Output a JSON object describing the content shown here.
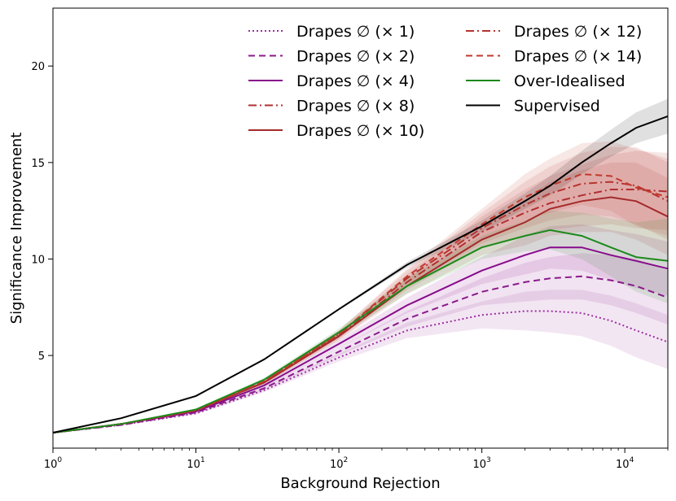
{
  "chart_data": {
    "type": "line",
    "xscale": "log",
    "xlabel": "Background Rejection",
    "ylabel": "Significance Improvement",
    "xlim": [
      1,
      20000
    ],
    "ylim": [
      0.2,
      23
    ],
    "xticks": [
      {
        "value": 1,
        "base": "10",
        "exp": "0"
      },
      {
        "value": 10,
        "base": "10",
        "exp": "1"
      },
      {
        "value": 100,
        "base": "10",
        "exp": "2"
      },
      {
        "value": 1000,
        "base": "10",
        "exp": "3"
      },
      {
        "value": 10000,
        "base": "10",
        "exp": "4"
      }
    ],
    "yticks": [
      5,
      10,
      15,
      20
    ],
    "legend_position": "top-right",
    "series": [
      {
        "name": "Drapes ∅ (× 1)",
        "color": "#9b2fa0",
        "dash": "2,3",
        "width": 2,
        "x": [
          1,
          3,
          10,
          30,
          100,
          300,
          1000,
          2000,
          3000,
          5000,
          8000,
          12000,
          20000
        ],
        "y": [
          1.0,
          1.4,
          2.0,
          3.2,
          4.9,
          6.3,
          7.1,
          7.3,
          7.3,
          7.2,
          6.8,
          6.3,
          5.7
        ],
        "band": [
          0.0,
          0.0,
          0.05,
          0.1,
          0.2,
          0.4,
          0.7,
          1.0,
          1.1,
          1.2,
          1.3,
          1.4,
          1.4
        ]
      },
      {
        "name": "Drapes ∅ (× 2)",
        "color": "#8b1a8b",
        "dash": "8,5",
        "width": 2,
        "x": [
          1,
          3,
          10,
          30,
          100,
          300,
          1000,
          2000,
          3000,
          5000,
          8000,
          12000,
          20000
        ],
        "y": [
          1.0,
          1.4,
          2.05,
          3.3,
          5.2,
          6.9,
          8.3,
          8.8,
          9.0,
          9.1,
          8.9,
          8.6,
          8.0
        ],
        "band": [
          0.0,
          0.0,
          0.05,
          0.1,
          0.2,
          0.4,
          0.7,
          1.0,
          1.1,
          1.2,
          1.3,
          1.4,
          1.4
        ]
      },
      {
        "name": "Drapes ∅ (× 4)",
        "color": "#880c8c",
        "dash": "",
        "width": 2,
        "x": [
          1,
          3,
          10,
          30,
          100,
          300,
          1000,
          2000,
          3000,
          5000,
          8000,
          12000,
          20000
        ],
        "y": [
          1.0,
          1.45,
          2.1,
          3.45,
          5.6,
          7.6,
          9.4,
          10.2,
          10.6,
          10.6,
          10.2,
          9.9,
          9.5
        ],
        "band": [
          0.0,
          0.0,
          0.05,
          0.1,
          0.2,
          0.4,
          0.7,
          1.0,
          1.1,
          1.2,
          1.3,
          1.4,
          1.4
        ]
      },
      {
        "name": "Drapes ∅ (× 8)",
        "color": "#b03030",
        "dash": "10,4,2,4",
        "width": 2,
        "x": [
          1,
          3,
          10,
          30,
          100,
          300,
          1000,
          2000,
          3000,
          5000,
          8000,
          12000,
          20000
        ],
        "y": [
          1.0,
          1.45,
          2.15,
          3.6,
          6.0,
          8.8,
          11.4,
          12.4,
          12.9,
          13.3,
          13.6,
          13.6,
          13.5
        ],
        "band": [
          0.0,
          0.0,
          0.05,
          0.1,
          0.2,
          0.4,
          0.8,
          1.2,
          1.4,
          1.6,
          1.8,
          2.0,
          2.0
        ]
      },
      {
        "name": "Drapes ∅ (× 10)",
        "color": "#a52a2a",
        "dash": "",
        "width": 2,
        "x": [
          1,
          3,
          10,
          30,
          100,
          300,
          1000,
          2000,
          3000,
          5000,
          8000,
          12000,
          20000
        ],
        "y": [
          1.0,
          1.45,
          2.15,
          3.6,
          6.0,
          8.6,
          11.0,
          11.9,
          12.6,
          13.0,
          13.2,
          13.0,
          12.2
        ],
        "band": [
          0.0,
          0.0,
          0.05,
          0.1,
          0.2,
          0.4,
          0.8,
          1.2,
          1.4,
          1.6,
          1.8,
          2.0,
          2.0
        ]
      },
      {
        "name": "Drapes ∅ (× 12)",
        "color": "#b5332e",
        "dash": "10,4,2,4",
        "width": 2,
        "x": [
          1,
          3,
          10,
          30,
          100,
          300,
          1000,
          2000,
          3000,
          5000,
          8000,
          12000,
          20000
        ],
        "y": [
          1.0,
          1.45,
          2.15,
          3.65,
          6.1,
          9.0,
          11.6,
          12.8,
          13.4,
          13.9,
          14.0,
          13.8,
          13.0
        ],
        "band": [
          0.0,
          0.0,
          0.05,
          0.1,
          0.2,
          0.4,
          0.8,
          1.2,
          1.4,
          1.6,
          1.8,
          2.0,
          2.0
        ]
      },
      {
        "name": "Drapes ∅ (× 14)",
        "color": "#c0392b",
        "dash": "8,5",
        "width": 2,
        "x": [
          1,
          3,
          10,
          30,
          100,
          300,
          1000,
          2000,
          3000,
          5000,
          8000,
          12000,
          20000
        ],
        "y": [
          1.0,
          1.45,
          2.15,
          3.65,
          6.1,
          9.1,
          11.8,
          13.2,
          13.8,
          14.4,
          14.3,
          13.7,
          13.2
        ],
        "band": [
          0.0,
          0.0,
          0.05,
          0.1,
          0.2,
          0.4,
          0.8,
          1.2,
          1.4,
          1.6,
          1.8,
          2.0,
          2.0
        ]
      },
      {
        "name": "Over-Idealised",
        "color": "#1b8a1b",
        "dash": "",
        "width": 2,
        "x": [
          1,
          3,
          10,
          30,
          100,
          300,
          1000,
          2000,
          3000,
          5000,
          8000,
          12000,
          20000
        ],
        "y": [
          1.0,
          1.45,
          2.2,
          3.75,
          6.2,
          8.6,
          10.6,
          11.2,
          11.5,
          11.2,
          10.6,
          10.1,
          9.9
        ],
        "band": [
          0.0,
          0.0,
          0.05,
          0.1,
          0.2,
          0.4,
          0.6,
          0.8,
          1.0,
          1.2,
          1.5,
          1.8,
          2.2
        ]
      },
      {
        "name": "Supervised",
        "color": "#000000",
        "dash": "",
        "width": 2,
        "x": [
          1,
          3,
          10,
          30,
          100,
          300,
          1000,
          2000,
          3000,
          5000,
          8000,
          12000,
          20000
        ],
        "y": [
          1.0,
          1.75,
          2.9,
          4.8,
          7.4,
          9.7,
          11.7,
          13.0,
          13.8,
          15.0,
          16.0,
          16.8,
          17.4
        ],
        "band": [
          0.0,
          0.0,
          0.0,
          0.0,
          0.05,
          0.15,
          0.3,
          0.4,
          0.5,
          0.6,
          0.7,
          0.8,
          0.9
        ]
      }
    ]
  }
}
